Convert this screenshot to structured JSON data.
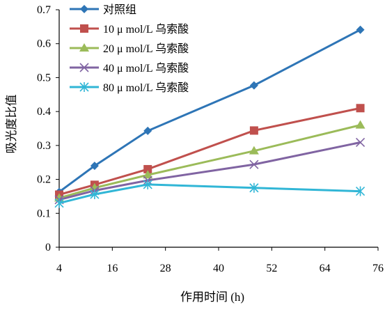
{
  "chart_data": {
    "type": "line",
    "xlabel": "作用时间 (h)",
    "ylabel": "吸光度比值",
    "xlim": [
      4,
      76
    ],
    "ylim": [
      0,
      0.7
    ],
    "xticks": [
      4,
      16,
      28,
      40,
      52,
      64,
      76
    ],
    "yticks": [
      0,
      0.1,
      0.2,
      0.3,
      0.4,
      0.5,
      0.6,
      0.7
    ],
    "xtick_labels": [
      "4",
      "16",
      "28",
      "40",
      "52",
      "64",
      "76"
    ],
    "ytick_labels": [
      "0",
      "0.1",
      "0.2",
      "0.3",
      "0.4",
      "0.5",
      "0.6",
      "0.7"
    ],
    "legend_position": "top-left",
    "grid": false,
    "series": [
      {
        "name": "对照组",
        "color": "#2E75B6",
        "marker": "diamond",
        "x": [
          4,
          12,
          24,
          48,
          72
        ],
        "y": [
          0.163,
          0.24,
          0.343,
          0.477,
          0.641
        ]
      },
      {
        "name": "10 μ mol/L 乌索酸",
        "color": "#C0504D",
        "marker": "square",
        "x": [
          4,
          12,
          24,
          48,
          72
        ],
        "y": [
          0.155,
          0.184,
          0.23,
          0.344,
          0.41
        ]
      },
      {
        "name": "20 μ mol/L 乌索酸",
        "color": "#9BBB59",
        "marker": "triangle",
        "x": [
          4,
          12,
          24,
          48,
          72
        ],
        "y": [
          0.145,
          0.175,
          0.213,
          0.284,
          0.36
        ]
      },
      {
        "name": "40 μ mol/L 乌索酸",
        "color": "#8064A2",
        "marker": "x",
        "x": [
          4,
          12,
          24,
          48,
          72
        ],
        "y": [
          0.14,
          0.167,
          0.197,
          0.244,
          0.309
        ]
      },
      {
        "name": "80 μ mol/L 乌索酸",
        "color": "#31B6D6",
        "marker": "asterisk",
        "x": [
          4,
          12,
          24,
          48,
          72
        ],
        "y": [
          0.13,
          0.156,
          0.185,
          0.175,
          0.165
        ]
      }
    ]
  }
}
